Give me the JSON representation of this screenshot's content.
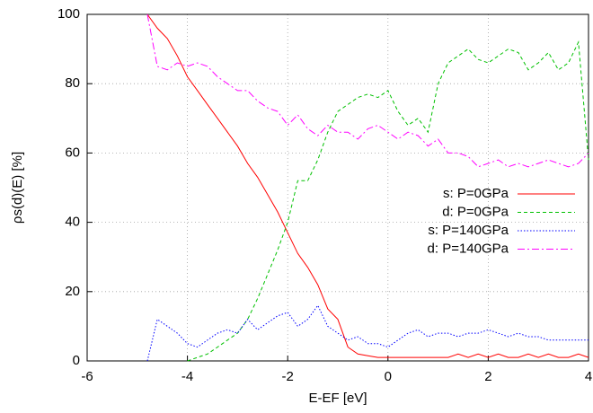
{
  "chart_data": {
    "type": "line",
    "xlabel": "E-EF [eV]",
    "ylabel": "ρs(d)(E) [%]",
    "x": [
      -4.8,
      -4.6,
      -4.4,
      -4.2,
      -4.0,
      -3.8,
      -3.6,
      -3.4,
      -3.2,
      -3.0,
      -2.8,
      -2.6,
      -2.4,
      -2.2,
      -2.0,
      -1.8,
      -1.6,
      -1.4,
      -1.2,
      -1.0,
      -0.8,
      -0.6,
      -0.4,
      -0.2,
      0,
      0.2,
      0.4,
      0.6,
      0.8,
      1.0,
      1.2,
      1.4,
      1.6,
      1.8,
      2.0,
      2.2,
      2.4,
      2.6,
      2.8,
      3.0,
      3.2,
      3.4,
      3.6,
      3.8,
      4.0
    ],
    "series": [
      {
        "name": "s: P=0GPa",
        "color": "#ff0000",
        "dash": "none",
        "values": [
          100,
          96,
          93,
          88,
          82,
          78,
          74,
          70,
          66,
          62,
          57,
          53,
          48,
          43,
          37,
          31,
          27,
          22,
          15,
          12,
          4,
          2,
          1.5,
          1,
          1,
          1,
          1,
          1,
          1,
          1,
          1,
          2,
          1,
          2,
          1,
          2,
          1,
          1,
          2,
          1,
          2,
          1,
          1,
          2,
          1
        ]
      },
      {
        "name": "d: P=0GPa",
        "color": "#00c000",
        "dash": "4 3",
        "values": [
          null,
          null,
          null,
          null,
          0,
          1,
          2,
          4,
          6,
          8,
          12,
          18,
          25,
          32,
          40,
          52,
          52,
          58,
          66,
          72,
          74,
          76,
          77,
          76,
          78,
          72,
          68,
          70,
          66,
          80,
          86,
          88,
          90,
          87,
          86,
          88,
          90,
          89,
          84,
          86,
          89,
          84,
          86,
          92,
          58
        ]
      },
      {
        "name": "s: P=140GPa",
        "color": "#0000ff",
        "dash": "1.5 2",
        "values": [
          0,
          12,
          10,
          8,
          5,
          4,
          6,
          8,
          9,
          8,
          12,
          9,
          11,
          13,
          14,
          10,
          12,
          16,
          10,
          8,
          6,
          7,
          5,
          5,
          4,
          6,
          8,
          9,
          7,
          8,
          8,
          7,
          8,
          8,
          9,
          8,
          7,
          8,
          7,
          7,
          6,
          6,
          6,
          6,
          6
        ]
      },
      {
        "name": "d: P=140GPa",
        "color": "#ff00ff",
        "dash": "8 3 2 3",
        "values": [
          100,
          85,
          84,
          86,
          85,
          86,
          85,
          82,
          80,
          78,
          78,
          75,
          73,
          72,
          68,
          71,
          67,
          65,
          68,
          66,
          66,
          64,
          67,
          68,
          66,
          64,
          66,
          65,
          62,
          64,
          60,
          60,
          59,
          56,
          57,
          58,
          56,
          57,
          56,
          57,
          58,
          57,
          56,
          57,
          60
        ]
      }
    ],
    "xlim": [
      -6,
      4
    ],
    "xticks": [
      -6,
      -4,
      -2,
      0,
      2,
      4
    ],
    "ylim": [
      0,
      100
    ],
    "yticks": [
      0,
      20,
      40,
      60,
      80,
      100
    ],
    "grid": true,
    "legend": "right"
  }
}
